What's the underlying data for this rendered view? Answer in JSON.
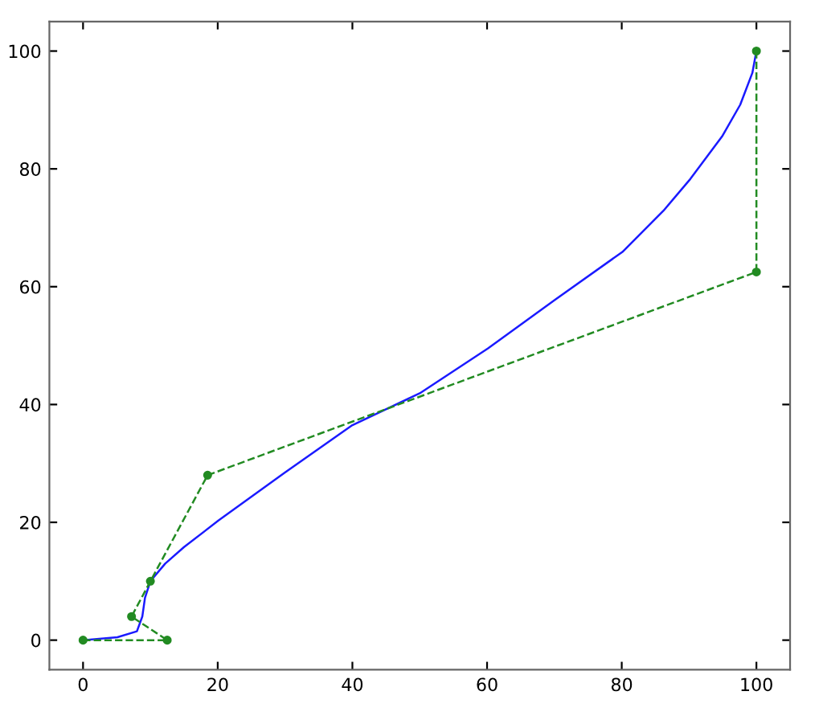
{
  "chart_data": {
    "type": "line",
    "xlim": [
      -5,
      105
    ],
    "ylim": [
      -5,
      105
    ],
    "xticks": [
      0,
      20,
      40,
      60,
      80,
      100
    ],
    "yticks": [
      0,
      20,
      40,
      60,
      80,
      100
    ],
    "grid": false,
    "series": [
      {
        "color": "#1a1aff",
        "marker": "none",
        "line_style": "solid",
        "x": [
          0,
          5.1,
          8,
          8.8,
          9.2,
          10,
          12.2,
          15,
          20.1,
          29.9,
          40,
          50,
          60.1,
          70.1,
          80.1,
          86.2,
          90.2,
          94.9,
          97.6,
          99.4,
          100
        ],
        "values": [
          0,
          0.5,
          1.5,
          4,
          7.2,
          10,
          13,
          15.8,
          20.3,
          28.4,
          36.5,
          41.9,
          49.5,
          57.8,
          65.9,
          72.9,
          78.3,
          85.5,
          90.9,
          96.3,
          100
        ]
      },
      {
        "color": "#228b22",
        "marker": "circle",
        "line_style": "dashed",
        "x": [
          0,
          12.5,
          7.2,
          10,
          18.5,
          100,
          100
        ],
        "values": [
          0,
          0,
          4,
          10,
          28,
          62.5,
          100
        ]
      }
    ]
  }
}
